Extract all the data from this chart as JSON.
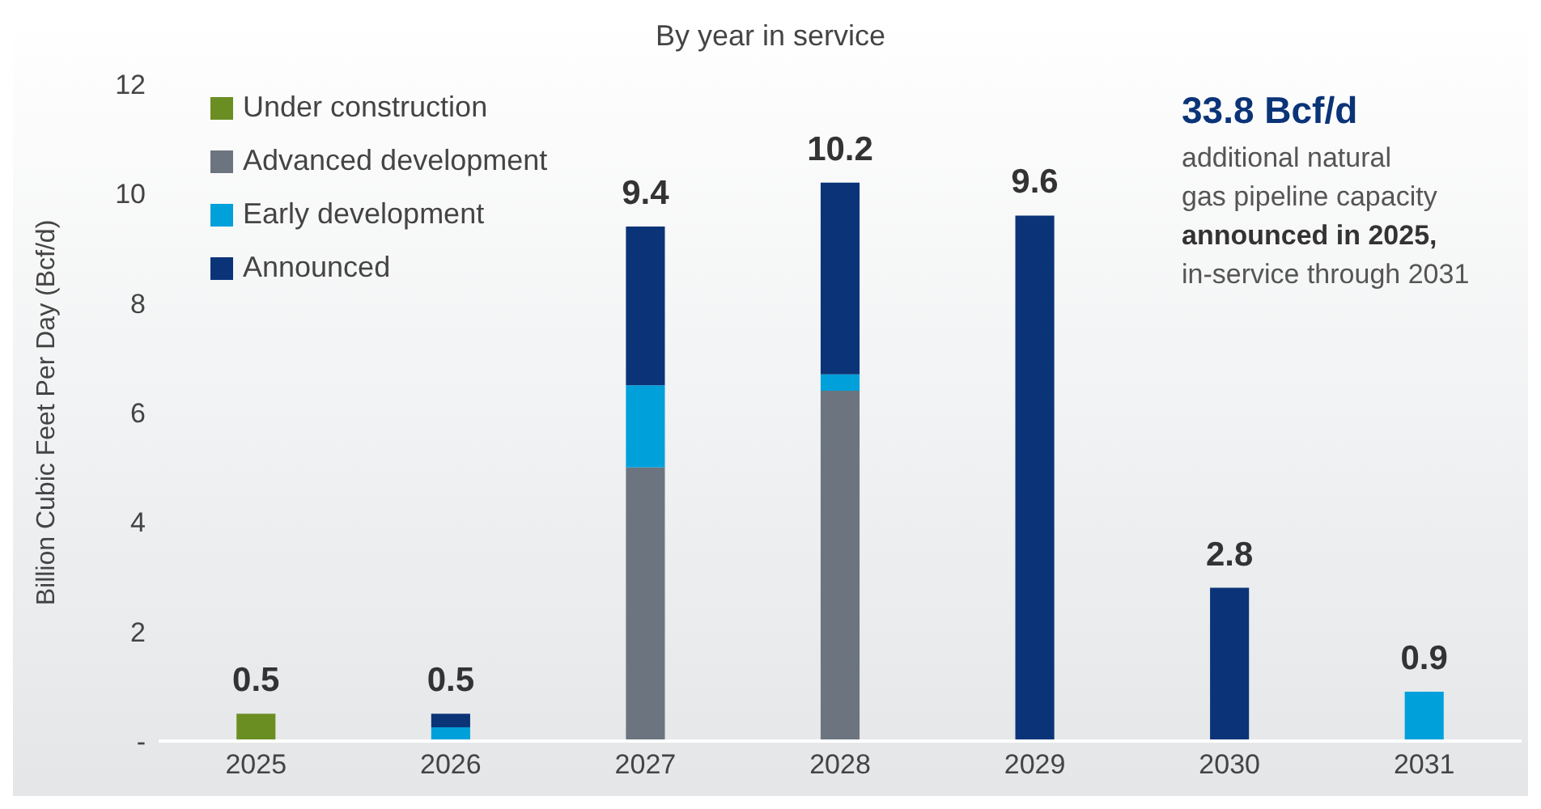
{
  "chart_data": {
    "type": "bar",
    "title": "By year in service",
    "ylabel": "Billion Cubic Feet Per Day (Bcf/d)",
    "categories": [
      "2025",
      "2026",
      "2027",
      "2028",
      "2029",
      "2030",
      "2031"
    ],
    "stacked": true,
    "series": [
      {
        "name": "Under construction",
        "color": "#6b8e23",
        "values": [
          0.5,
          null,
          null,
          null,
          null,
          null,
          null
        ]
      },
      {
        "name": "Advanced development",
        "color": "#6c757f",
        "values": [
          null,
          null,
          5.0,
          6.4,
          null,
          null,
          null
        ]
      },
      {
        "name": "Early development",
        "color": "#00a0da",
        "values": [
          null,
          0.25,
          1.5,
          0.3,
          null,
          null,
          0.9
        ]
      },
      {
        "name": "Announced",
        "color": "#0b3478",
        "values": [
          null,
          0.25,
          2.9,
          3.5,
          9.6,
          2.8,
          null
        ]
      }
    ],
    "totals": [
      "0.5",
      "0.5",
      "9.4",
      "10.2",
      "9.6",
      "2.8",
      "0.9"
    ],
    "ylim": [
      0,
      12
    ],
    "yticks": [
      {
        "value": 0,
        "label": "-"
      },
      2,
      4,
      6,
      8,
      10,
      12
    ],
    "grid": false,
    "legend": "top left",
    "annotations": [
      "33.8 Bcf/d",
      "additional natural",
      "gas pipeline capacity",
      "announced in 2025,",
      "in-service through 2031"
    ]
  }
}
